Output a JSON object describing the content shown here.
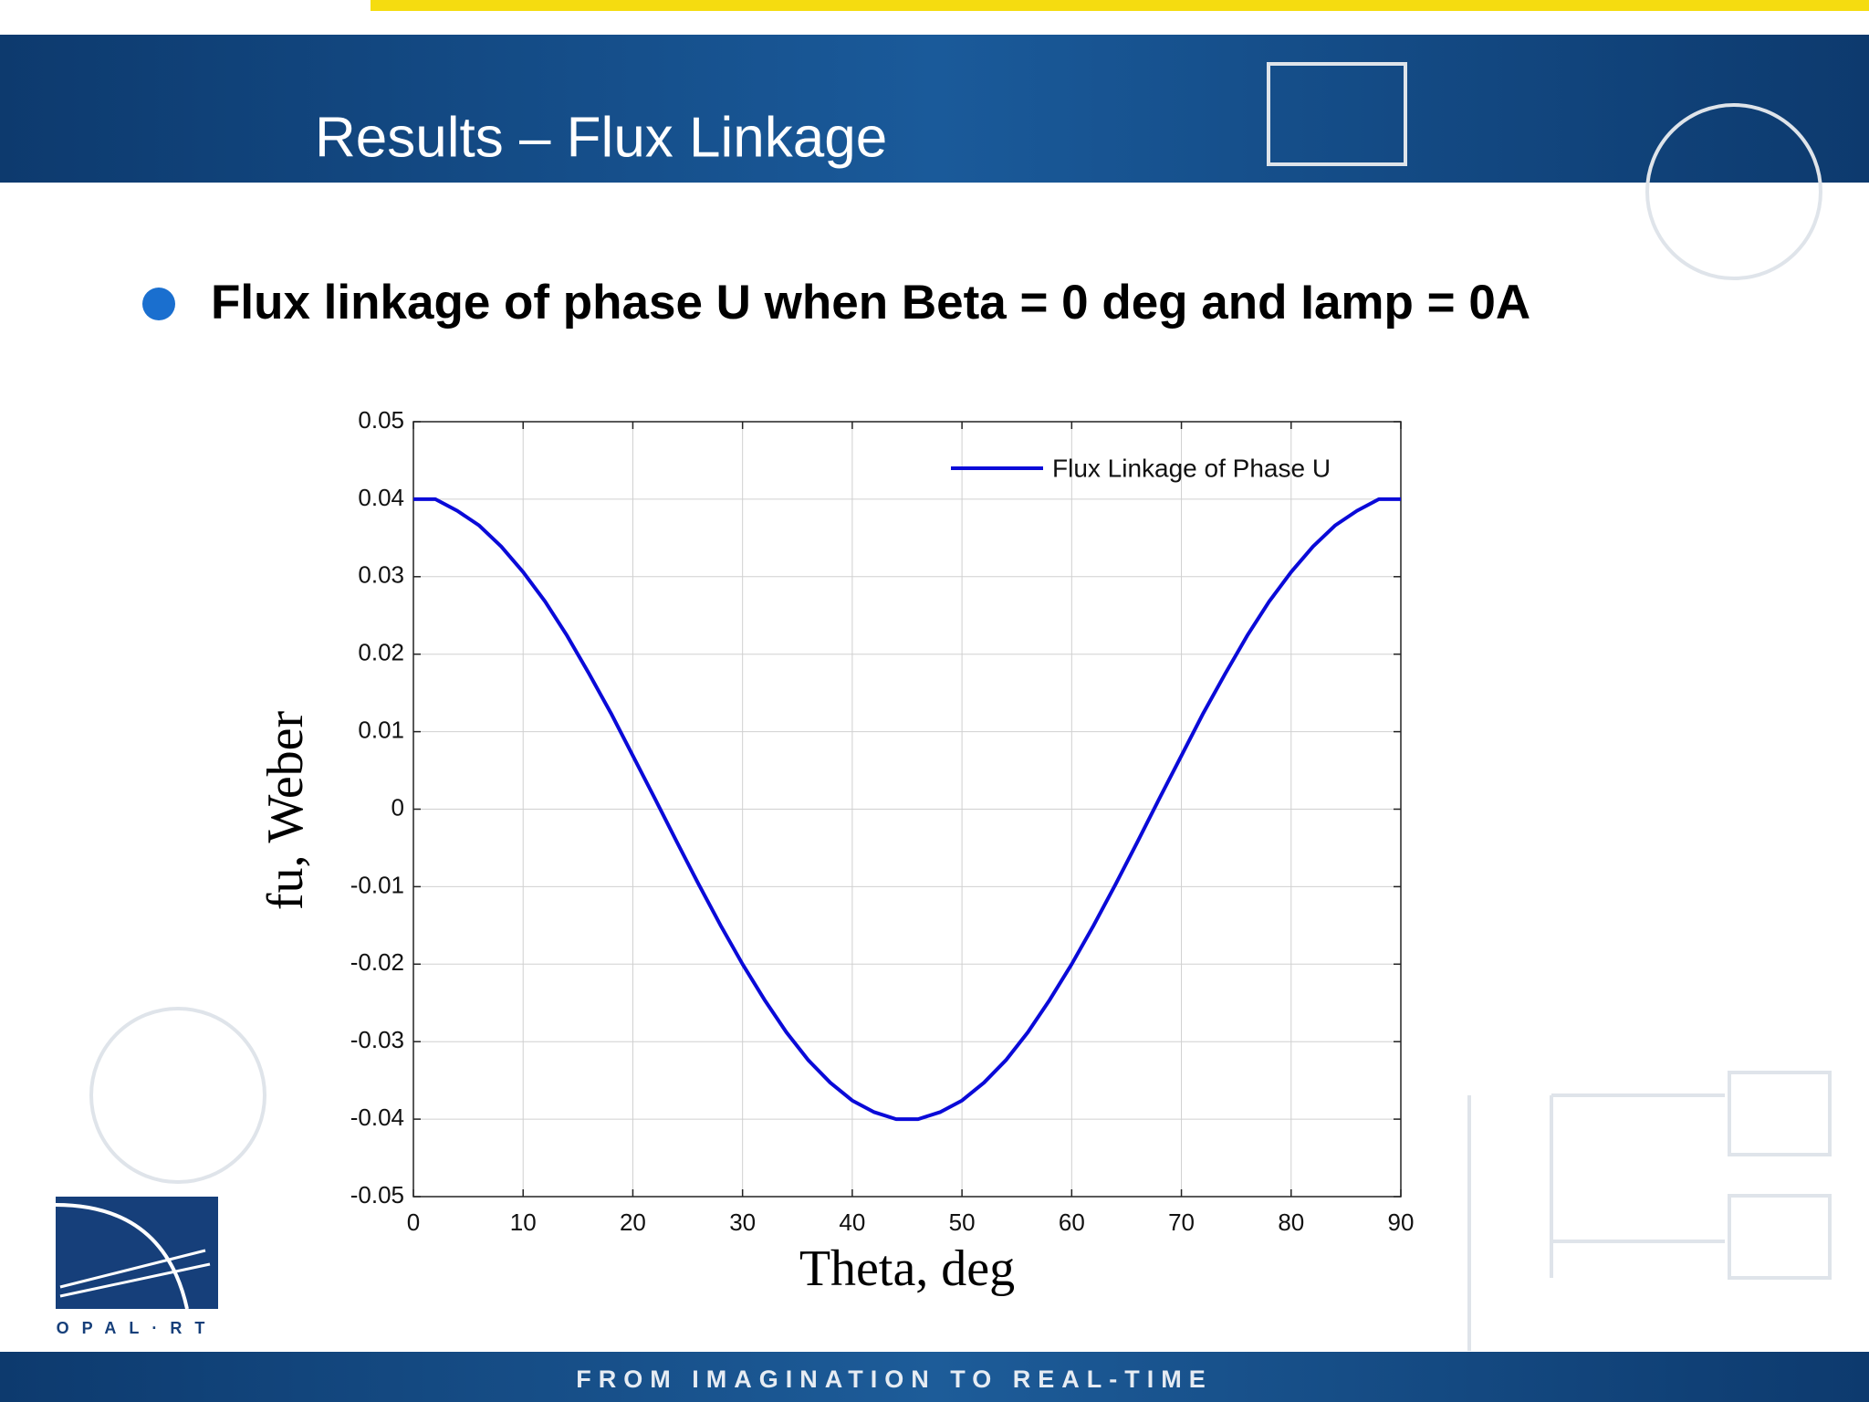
{
  "slide": {
    "title": "Results – Flux Linkage",
    "bullet": "Flux linkage of phase U when Beta = 0 deg and Iamp = 0A",
    "logo": "OPAL·RT",
    "footer": "FROM IMAGINATION TO REAL-TIME"
  },
  "chart_data": {
    "type": "line",
    "xlabel": "Theta, deg",
    "ylabel": "fu, Weber",
    "x": [
      0,
      2,
      4,
      6,
      8,
      10,
      12,
      14,
      16,
      18,
      20,
      22,
      24,
      26,
      28,
      30,
      32,
      34,
      36,
      38,
      40,
      42,
      44,
      46,
      48,
      50,
      52,
      54,
      56,
      58,
      60,
      62,
      64,
      66,
      68,
      70,
      72,
      74,
      76,
      78,
      80,
      82,
      84,
      86,
      88,
      90
    ],
    "series": [
      {
        "name": "Flux Linkage of Phase U",
        "color": "#0a0ad8",
        "values": [
          0.04,
          0.04,
          0.0385,
          0.0366,
          0.0339,
          0.0306,
          0.0268,
          0.0224,
          0.0175,
          0.0124,
          0.0069,
          0.0014,
          -0.0042,
          -0.0097,
          -0.015,
          -0.02,
          -0.0246,
          -0.0288,
          -0.0324,
          -0.0353,
          -0.0376,
          -0.0391,
          -0.04,
          -0.04,
          -0.0391,
          -0.0376,
          -0.0353,
          -0.0324,
          -0.0288,
          -0.0246,
          -0.02,
          -0.015,
          -0.0097,
          -0.0042,
          0.0014,
          0.0069,
          0.0124,
          0.0175,
          0.0224,
          0.0268,
          0.0306,
          0.0339,
          0.0366,
          0.0385,
          0.04,
          0.04
        ]
      }
    ],
    "xlim": [
      0,
      90
    ],
    "xticks": [
      0,
      10,
      20,
      30,
      40,
      50,
      60,
      70,
      80,
      90
    ],
    "ylim": [
      -0.05,
      0.05
    ],
    "yticks": [
      -0.05,
      -0.04,
      -0.03,
      -0.02,
      -0.01,
      0,
      0.01,
      0.02,
      0.03,
      0.04,
      0.05
    ],
    "grid": true,
    "legend": "upper right"
  }
}
